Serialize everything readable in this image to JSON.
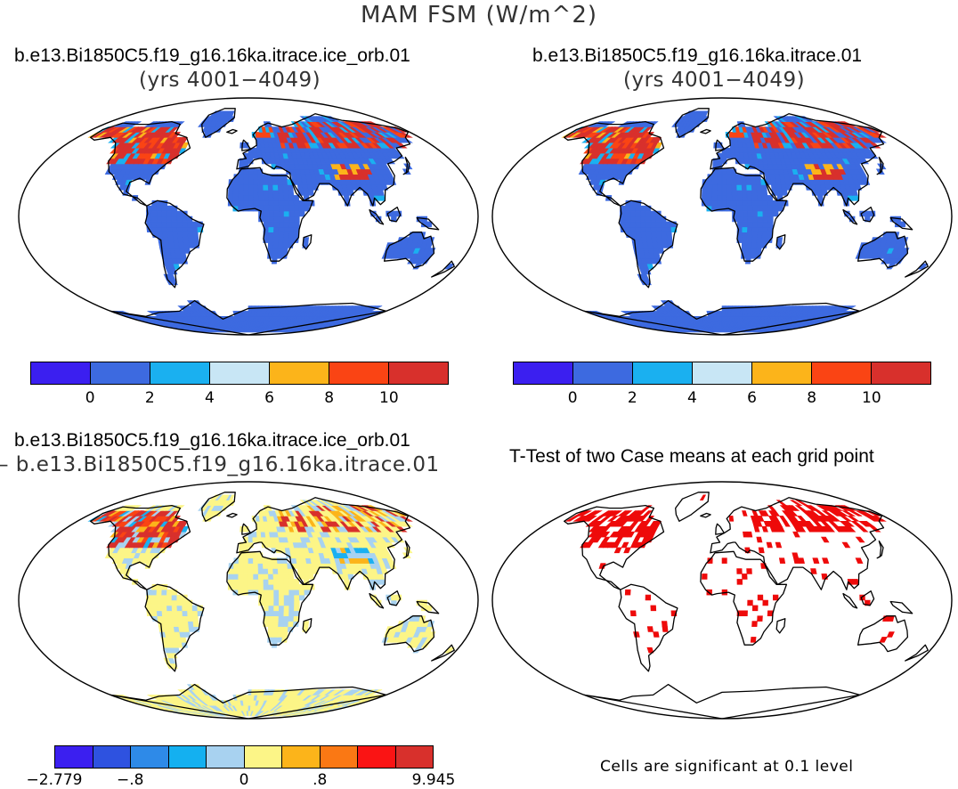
{
  "main_title": "MAM FSM (W/m^2)",
  "panels": {
    "top_left": {
      "title": "b.e13.Bi1850C5.f19_g16.16ka.itrace.ice_orb.01",
      "subtitle": "(yrs 4001−4049)"
    },
    "top_right": {
      "title": "b.e13.Bi1850C5.f19_g16.16ka.itrace.01",
      "subtitle": "(yrs 4001−4049)"
    },
    "bottom_left": {
      "title": "b.e13.Bi1850C5.f19_g16.16ka.itrace.ice_orb.01",
      "subtitle": "– b.e13.Bi1850C5.f19_g16.16ka.itrace.01"
    },
    "bottom_right": {
      "title": "T-Test of two Case means at each grid point",
      "note": "Cells are significant at 0.1 level"
    }
  },
  "colorbar_abs": {
    "colors": [
      "#3b1ff0",
      "#3d6ae0",
      "#1ab0f0",
      "#c8e6f5",
      "#fcb41a",
      "#fa4414",
      "#d8302c"
    ],
    "labels": [
      "0",
      "2",
      "4",
      "6",
      "8",
      "10"
    ]
  },
  "colorbar_diff": {
    "colors": [
      "#3b1ff0",
      "#2e52e0",
      "#2e8ae8",
      "#14b0f0",
      "#a8d2f0",
      "#fcf587",
      "#fcb41a",
      "#fa7814",
      "#fa1414",
      "#d8302c"
    ],
    "labels": [
      "−2.779",
      "−.8",
      "0",
      ".8",
      "9.945"
    ]
  },
  "colors": {
    "land_base": "#3d6ae0",
    "land_diff": "#fcf587",
    "land_diff_neg": "#a8d2f0",
    "warm_1": "#fcb41a",
    "warm_2": "#fa4414",
    "warm_3": "#d8302c",
    "cool": "#1ab0f0",
    "significant": "#ee0a0a"
  }
}
